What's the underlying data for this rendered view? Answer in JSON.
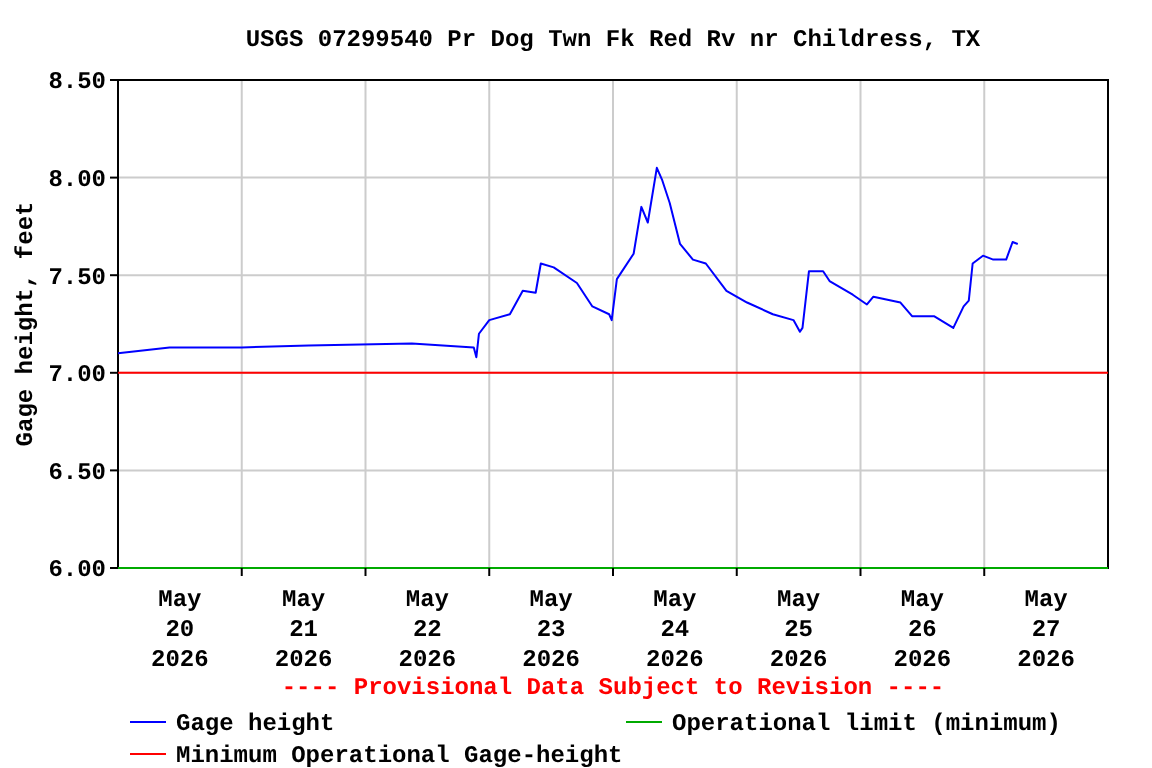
{
  "chart_data": {
    "type": "line",
    "title": "USGS 07299540 Pr Dog Twn Fk Red Rv nr Childress, TX",
    "ylabel": "Gage height, feet",
    "annotations": [
      "---- Provisional Data Subject to Revision ----"
    ],
    "xlim": [
      "2026-05-20T00:00",
      "2026-05-28T00:00"
    ],
    "xticks": [
      {
        "value": "2026-05-20T12:00",
        "label": "May\n20\n2026"
      },
      {
        "value": "2026-05-21T12:00",
        "label": "May\n21\n2026"
      },
      {
        "value": "2026-05-22T12:00",
        "label": "May\n22\n2026"
      },
      {
        "value": "2026-05-23T12:00",
        "label": "May\n23\n2026"
      },
      {
        "value": "2026-05-24T12:00",
        "label": "May\n24\n2026"
      },
      {
        "value": "2026-05-25T12:00",
        "label": "May\n25\n2026"
      },
      {
        "value": "2026-05-26T12:00",
        "label": "May\n26\n2026"
      },
      {
        "value": "2026-05-27T12:00",
        "label": "May\n27\n2026"
      },
      {
        "value": "2026-05-21T00:00",
        "label": null
      },
      {
        "value": "2026-05-22T00:00",
        "label": null
      },
      {
        "value": "2026-05-23T00:00",
        "label": null
      },
      {
        "value": "2026-05-24T00:00",
        "label": null
      },
      {
        "value": "2026-05-25T00:00",
        "label": null
      },
      {
        "value": "2026-05-26T00:00",
        "label": null
      },
      {
        "value": "2026-05-27T00:00",
        "label": null
      }
    ],
    "ylim": [
      6,
      8.5
    ],
    "yticks": [
      {
        "value": 6,
        "label": "6.00"
      },
      {
        "value": 6.5,
        "label": "6.50"
      },
      {
        "value": 7,
        "label": "7.00"
      },
      {
        "value": 7.5,
        "label": "7.50"
      },
      {
        "value": 8,
        "label": "8.00"
      },
      {
        "value": 8.5,
        "label": "8.50"
      }
    ],
    "grid": true,
    "legend": "bottom",
    "marker": "none",
    "line_style": "solid",
    "series": [
      {
        "name": "Gage height",
        "color": "#0000ff",
        "x": [
          "2026-05-20T00:00",
          "2026-05-20T10:00",
          "2026-05-21T00:00",
          "2026-05-21T13:00",
          "2026-05-22T09:00",
          "2026-05-22T21:00",
          "2026-05-22T21:30",
          "2026-05-22T22:00",
          "2026-05-23T00:00",
          "2026-05-23T04:00",
          "2026-05-23T06:30",
          "2026-05-23T09:00",
          "2026-05-23T10:00",
          "2026-05-23T12:30",
          "2026-05-23T17:00",
          "2026-05-23T20:00",
          "2026-05-23T23:15",
          "2026-05-23T23:45",
          "2026-05-24T00:45",
          "2026-05-24T04:00",
          "2026-05-24T05:30",
          "2026-05-24T06:45",
          "2026-05-24T08:30",
          "2026-05-24T09:30",
          "2026-05-24T11:00",
          "2026-05-24T13:00",
          "2026-05-24T15:30",
          "2026-05-24T18:00",
          "2026-05-24T22:00",
          "2026-05-25T02:00",
          "2026-05-25T07:00",
          "2026-05-25T11:00",
          "2026-05-25T12:15",
          "2026-05-25T12:45",
          "2026-05-25T14:00",
          "2026-05-25T16:45",
          "2026-05-25T18:00",
          "2026-05-25T22:30",
          "2026-05-26T01:15",
          "2026-05-26T02:30",
          "2026-05-26T07:45",
          "2026-05-26T10:00",
          "2026-05-26T14:15",
          "2026-05-26T18:00",
          "2026-05-26T20:00",
          "2026-05-26T21:00",
          "2026-05-26T21:45",
          "2026-05-26T23:45",
          "2026-05-27T01:45",
          "2026-05-27T04:15",
          "2026-05-27T05:30",
          "2026-05-27T06:30"
        ],
        "values": [
          7.1,
          7.13,
          7.13,
          7.14,
          7.15,
          7.13,
          7.08,
          7.2,
          7.27,
          7.3,
          7.42,
          7.41,
          7.56,
          7.54,
          7.46,
          7.34,
          7.3,
          7.27,
          7.48,
          7.61,
          7.85,
          7.77,
          8.05,
          7.99,
          7.87,
          7.66,
          7.58,
          7.56,
          7.42,
          7.36,
          7.3,
          7.27,
          7.21,
          7.23,
          7.52,
          7.52,
          7.47,
          7.4,
          7.35,
          7.39,
          7.36,
          7.29,
          7.29,
          7.23,
          7.34,
          7.37,
          7.56,
          7.6,
          7.58,
          7.58,
          7.67,
          7.66
        ]
      },
      {
        "name": "Operational limit (minimum)",
        "color": "#00aa00",
        "x": [
          "2026-05-20T00:00",
          "2026-05-28T00:00"
        ],
        "values": [
          6,
          6
        ]
      },
      {
        "name": "Minimum Operational Gage-height",
        "color": "#ff0000",
        "x": [
          "2026-05-20T00:00",
          "2026-05-28T00:00"
        ],
        "values": [
          7,
          7
        ]
      }
    ]
  }
}
